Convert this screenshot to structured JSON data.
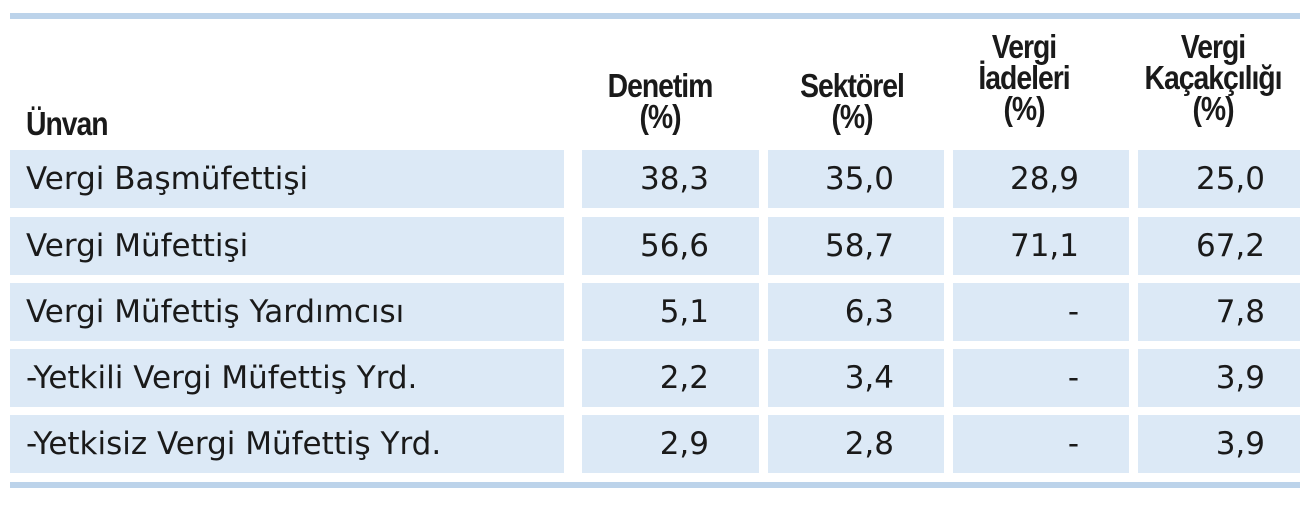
{
  "table": {
    "headers": {
      "unvan": "Ünvan",
      "col1": [
        "Denetim",
        "(%)"
      ],
      "col2": [
        "Sektörel",
        "(%)"
      ],
      "col3": [
        "Vergi",
        "İadeleri",
        "(%)"
      ],
      "col4": [
        "Vergi",
        "Kaçakçılığı",
        "(%)"
      ]
    },
    "rows": [
      {
        "label": "Vergi Başmüfettişi",
        "values": [
          "38,3",
          "35,0",
          "28,9",
          "25,0"
        ]
      },
      {
        "label": "Vergi Müfettişi",
        "values": [
          "56,6",
          "58,7",
          "71,1",
          "67,2"
        ]
      },
      {
        "label": "Vergi Müfettiş Yardımcısı",
        "values": [
          "5,1",
          "6,3",
          "-",
          "7,8"
        ]
      },
      {
        "label": "-Yetkili Vergi Müfettiş Yrd.",
        "values": [
          "2,2",
          "3,4",
          "-",
          "3,9"
        ]
      },
      {
        "label": "-Yetkisiz Vergi Müfettiş Yrd.",
        "values": [
          "2,9",
          "2,8",
          "-",
          "3,9"
        ]
      }
    ]
  },
  "colors": {
    "rule": "#bcd3ea",
    "cell_background": "#dce9f6",
    "text": "#1a1a1a"
  }
}
